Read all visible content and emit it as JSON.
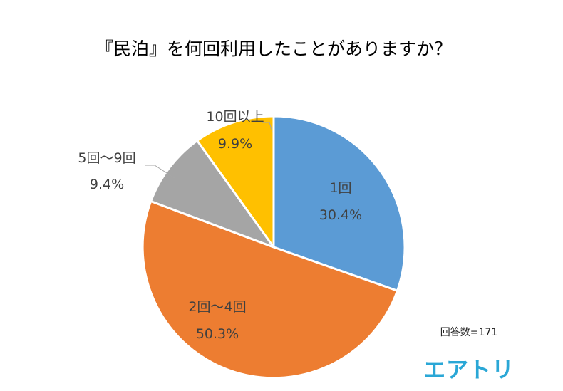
{
  "chart_data": {
    "type": "pie",
    "title": "『民泊』を何回利用したことがありますか？",
    "categories": [
      "1回",
      "2回～4回",
      "5回～9回",
      "10回以上"
    ],
    "values": [
      30.4,
      50.3,
      9.4,
      9.9
    ],
    "value_labels": [
      "30.4%",
      "50.3%",
      "9.4%",
      "9.9%"
    ],
    "colors": [
      "#5b9bd5",
      "#ed7d31",
      "#a5a5a5",
      "#ffc000"
    ],
    "start_angle_deg": 0,
    "direction": "clockwise",
    "legend": "none"
  },
  "note": "回答数=171",
  "logo": {
    "text": "エアトリ",
    "color": "#2aa7d6"
  }
}
